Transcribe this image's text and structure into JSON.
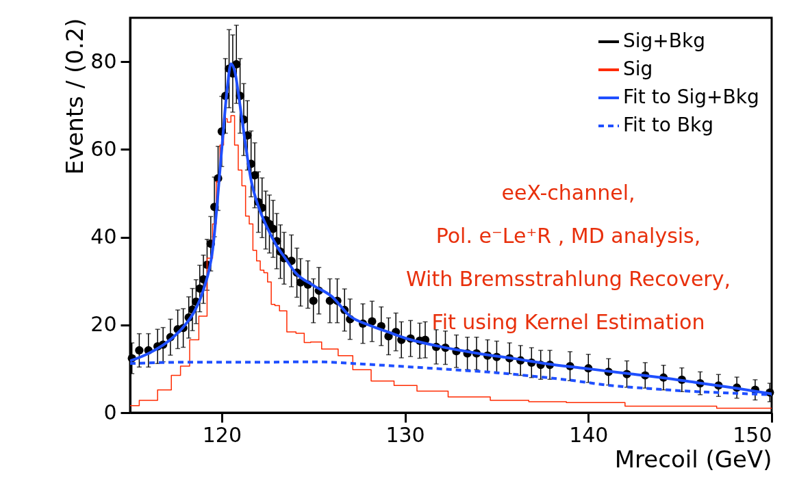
{
  "chart_data": {
    "type": "scatter",
    "xlabel": "Mrecoil (GeV)",
    "ylabel": "Events / (0.2)",
    "xlim": [
      115,
      150
    ],
    "xticks": [
      120,
      130,
      140,
      150
    ],
    "ylim": [
      0,
      90
    ],
    "yticks": [
      0,
      20,
      40,
      60,
      80
    ],
    "grid": false,
    "legend": "top right",
    "annotations": [
      "eeX-channel,",
      "Pol. e⁻Le⁺R , MD analysis,",
      "With Bremsstrahlung Recovery,",
      "Fit using Kernel Estimation"
    ],
    "series": [
      {
        "name": "Sig+Bkg",
        "type": "scatter",
        "marker": "circle",
        "color": "#000000",
        "x": [
          115.1,
          115.5,
          116.0,
          116.5,
          116.8,
          117.2,
          117.6,
          117.9,
          118.2,
          118.4,
          118.6,
          118.8,
          119.0,
          119.2,
          119.4,
          119.6,
          119.8,
          120.0,
          120.2,
          120.4,
          120.6,
          120.8,
          121.0,
          121.2,
          121.4,
          121.6,
          121.8,
          122.0,
          122.2,
          122.4,
          122.6,
          122.8,
          123.0,
          123.2,
          123.4,
          123.8,
          124.1,
          124.3,
          124.7,
          125.0,
          125.3,
          125.9,
          126.3,
          126.7,
          127.0,
          127.7,
          128.2,
          128.7,
          129.1,
          129.5,
          129.8,
          130.3,
          130.8,
          131.1,
          131.7,
          132.2,
          132.8,
          133.4,
          133.9,
          134.5,
          135.0,
          135.7,
          136.3,
          136.9,
          137.4,
          137.9,
          139.0,
          140.0,
          141.1,
          142.1,
          143.1,
          144.1,
          145.1,
          146.1,
          147.1,
          148.1,
          149.1,
          149.9
        ],
        "values": [
          12.4,
          14.2,
          14.2,
          15.1,
          15.5,
          17.2,
          19.0,
          19.3,
          21.7,
          23.5,
          25.3,
          28.3,
          30.4,
          33.7,
          38.5,
          46.9,
          53.4,
          64.1,
          72.2,
          78.4,
          77.3,
          79.4,
          72.2,
          66.8,
          63.2,
          56.7,
          54.1,
          48.0,
          46.7,
          43.9,
          43.0,
          41.9,
          39.1,
          36.7,
          35.2,
          34.6,
          31.9,
          29.7,
          29.2,
          25.5,
          27.8,
          25.5,
          25.5,
          23.4,
          21.3,
          20.3,
          20.8,
          19.7,
          17.4,
          18.4,
          16.6,
          16.9,
          16.4,
          16.6,
          15.0,
          14.8,
          14.0,
          13.5,
          13.5,
          13.0,
          12.7,
          12.4,
          11.9,
          11.4,
          10.9,
          10.9,
          10.6,
          10.1,
          9.3,
          8.8,
          8.5,
          8.0,
          7.5,
          6.7,
          6.2,
          5.7,
          5.2,
          4.6
        ],
        "errors": [
          3.5,
          3.8,
          3.8,
          3.9,
          3.9,
          4.1,
          4.4,
          4.4,
          4.7,
          4.8,
          5.0,
          5.3,
          5.5,
          5.8,
          6.2,
          6.8,
          7.3,
          8.0,
          8.5,
          8.9,
          8.8,
          8.9,
          8.5,
          8.2,
          7.9,
          7.5,
          7.4,
          6.9,
          6.8,
          6.6,
          6.6,
          6.5,
          6.3,
          6.1,
          5.9,
          5.9,
          5.6,
          5.4,
          5.4,
          5.0,
          5.3,
          5.0,
          5.0,
          4.8,
          4.6,
          4.5,
          4.6,
          4.4,
          4.2,
          4.3,
          4.1,
          4.1,
          4.0,
          4.1,
          3.9,
          3.8,
          3.7,
          3.7,
          3.7,
          3.6,
          3.6,
          3.5,
          3.4,
          3.4,
          3.3,
          3.3,
          3.3,
          3.2,
          3.0,
          3.0,
          2.9,
          2.8,
          2.7,
          2.6,
          2.5,
          2.4,
          2.3,
          2.1
        ]
      },
      {
        "name": "Sig",
        "type": "step",
        "color": "#ff2a00",
        "line_style": "solid",
        "x": [
          115,
          116,
          117,
          117.5,
          118,
          118.5,
          119,
          119.4,
          119.6,
          119.8,
          120,
          120.2,
          120.4,
          120.6,
          120.8,
          121,
          121.2,
          121.4,
          121.6,
          121.8,
          122,
          122.2,
          122.4,
          122.6,
          122.8,
          123,
          123.3,
          123.8,
          124.3,
          124.7,
          125,
          125.9,
          126.8,
          127.5,
          128.8,
          130,
          131.3,
          133.4,
          135.9,
          137.6,
          140,
          144,
          150
        ],
        "values": [
          1.6,
          2.8,
          5.2,
          8.5,
          10.6,
          16.6,
          22,
          35.2,
          43,
          52.7,
          61,
          67,
          66.2,
          67.7,
          61,
          55.3,
          51.7,
          44.8,
          43,
          37,
          34.6,
          32.5,
          31.9,
          29.8,
          24.7,
          24.4,
          23.2,
          18.4,
          18.1,
          16,
          16.1,
          14.5,
          13,
          9.8,
          7.2,
          6.2,
          4.9,
          3.6,
          2.8,
          2.5,
          2.3,
          1.5,
          1.0
        ]
      },
      {
        "name": "Fit to Sig+Bkg",
        "type": "line",
        "color": "#1f4fff",
        "line_style": "solid",
        "x": [
          115,
          116,
          117,
          118,
          118.5,
          119,
          119.5,
          120,
          120.3,
          120.5,
          120.7,
          121,
          121.3,
          121.6,
          122,
          122.5,
          123,
          123.5,
          124,
          125,
          126,
          127,
          128,
          129,
          130,
          132,
          134,
          136,
          138,
          140,
          142,
          144,
          146,
          148,
          150
        ],
        "values": [
          11.8,
          13.5,
          16,
          20,
          23,
          28,
          37,
          60,
          74,
          79.5,
          78,
          70,
          61,
          53,
          47,
          42,
          38,
          35,
          32,
          29,
          26.5,
          22,
          20,
          18.5,
          17,
          15,
          13.5,
          12.3,
          11,
          10,
          9,
          8,
          6.8,
          5.6,
          4.3
        ]
      },
      {
        "name": "Fit to Bkg",
        "type": "line",
        "color": "#1f4fff",
        "line_style": "dashed",
        "x": [
          115,
          118,
          122,
          125,
          128,
          130,
          132.6,
          135,
          137,
          139,
          141.2,
          143,
          145,
          147,
          150
        ],
        "values": [
          11.2,
          11.5,
          11.5,
          11.6,
          11,
          10.5,
          9.8,
          9.1,
          8.3,
          7.4,
          6.2,
          5.6,
          5.0,
          4.6,
          4.1
        ]
      }
    ]
  }
}
